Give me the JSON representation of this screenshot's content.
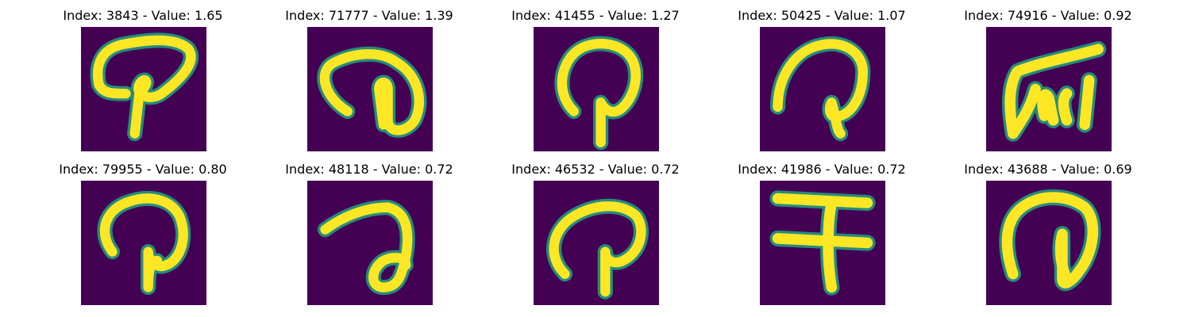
{
  "colors": {
    "background": "#ffffff",
    "image_background": "#440154",
    "stroke_core": "#fde725",
    "stroke_edge": "#21a585",
    "title_text": "#000000"
  },
  "panels": [
    {
      "title": "Index: 3843 - Value: 1.65",
      "glyph": "looped-p-shape-icon"
    },
    {
      "title": "Index: 71777 - Value: 1.39",
      "glyph": "curl-with-hook-shape-icon"
    },
    {
      "title": "Index: 41455 - Value: 1.27",
      "glyph": "loop-with-stem-shape-icon"
    },
    {
      "title": "Index: 50425 - Value: 1.07",
      "glyph": "arc-with-stem-shape-icon"
    },
    {
      "title": "Index: 74916 - Value: 0.92",
      "glyph": "slanted-block-shape-icon"
    },
    {
      "title": "Index: 79955 - Value: 0.80",
      "glyph": "looped-stem-shape-icon"
    },
    {
      "title": "Index: 48118 - Value: 0.72",
      "glyph": "hook-with-loop-shape-icon"
    },
    {
      "title": "Index: 46532 - Value: 0.72",
      "glyph": "arc-with-stem-shape-icon"
    },
    {
      "title": "Index: 41986 - Value: 0.72",
      "glyph": "cross-bars-shape-icon"
    },
    {
      "title": "Index: 43688 - Value: 0.69",
      "glyph": "arch-with-stem-shape-icon"
    }
  ]
}
